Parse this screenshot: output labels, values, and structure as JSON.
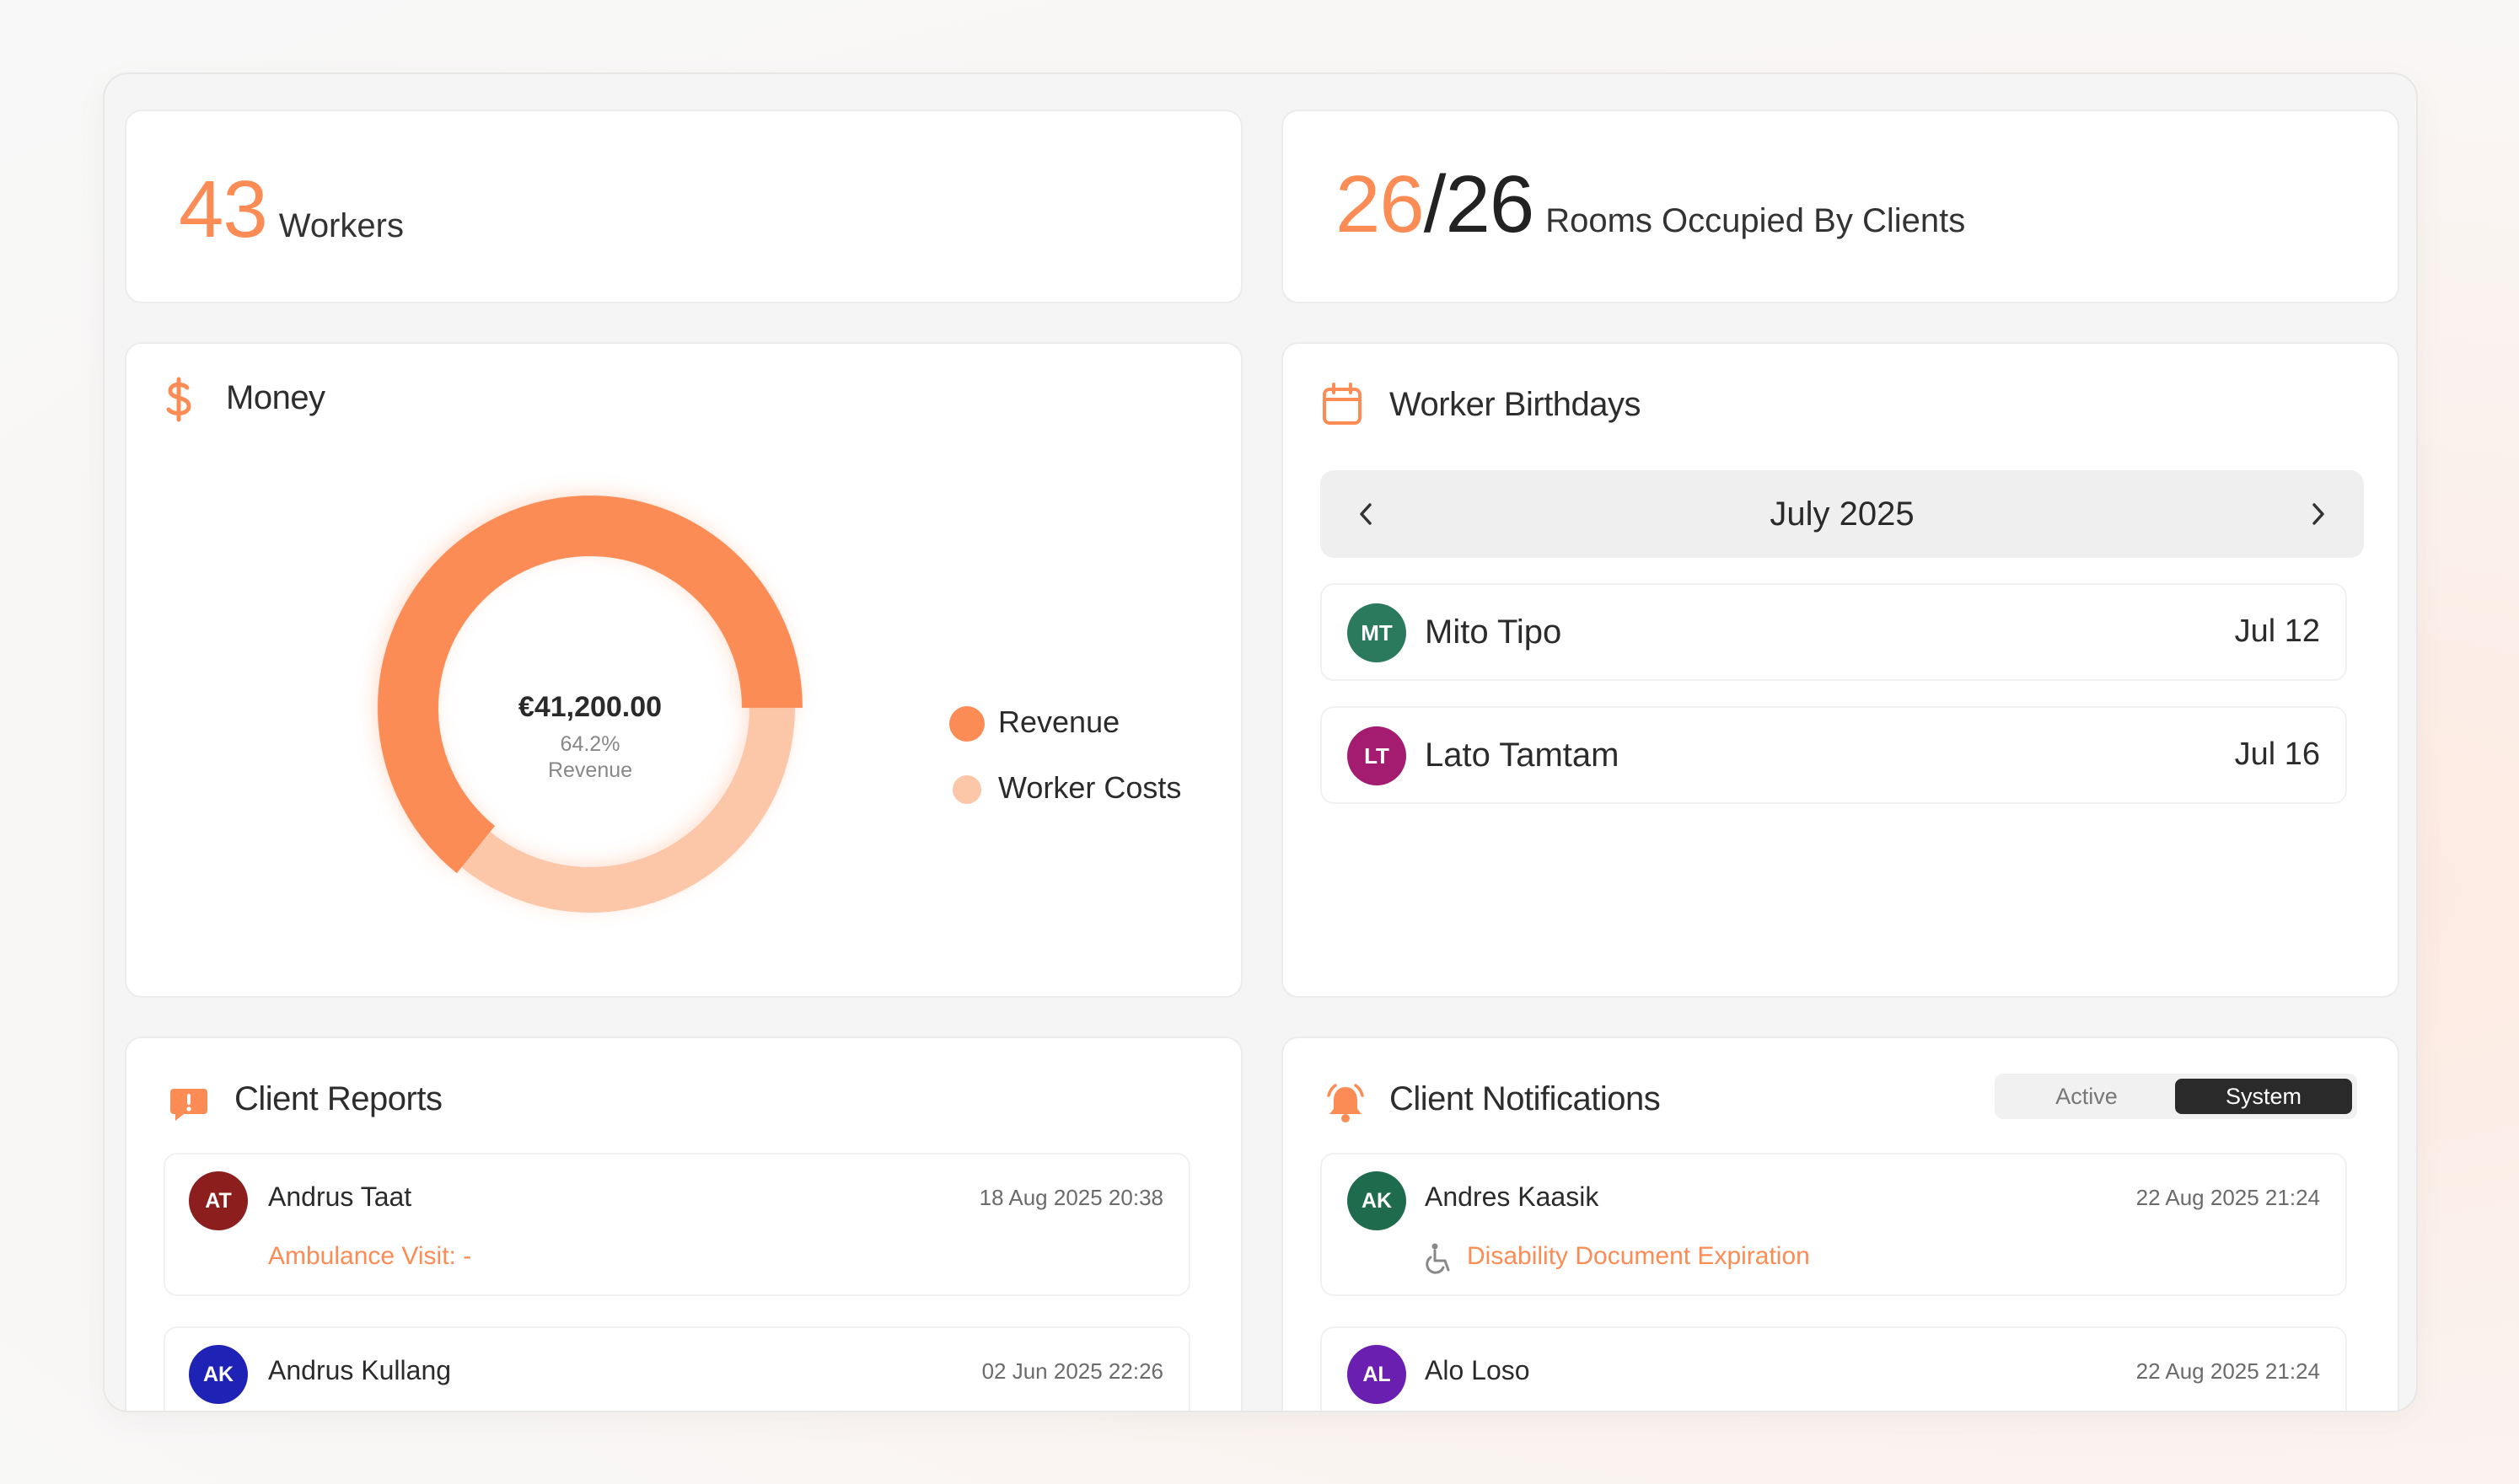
{
  "stats": {
    "workers_count": "43",
    "workers_label": "Workers",
    "rooms_occupied": "26",
    "rooms_separator": "/",
    "rooms_total": "26",
    "rooms_label": "Rooms Occupied By Clients"
  },
  "money": {
    "title": "Money",
    "center_value": "€41,200.00",
    "center_percent": "64.2%",
    "center_label": "Revenue",
    "legend": [
      {
        "label": "Revenue",
        "color": "#fb8c55"
      },
      {
        "label": "Worker Costs",
        "color": "#fcc6a8"
      }
    ],
    "chart_data": {
      "type": "pie",
      "categories": [
        "Revenue",
        "Worker Costs"
      ],
      "values": [
        64.2,
        35.8
      ],
      "colors": [
        "#fb8c55",
        "#fcc6a8"
      ]
    }
  },
  "birthdays": {
    "title": "Worker Birthdays",
    "month": "July 2025",
    "items": [
      {
        "initials": "MT",
        "name": "Mito Tipo",
        "date": "Jul 12",
        "color": "#2b7a5e"
      },
      {
        "initials": "LT",
        "name": "Lato Tamtam",
        "date": "Jul 16",
        "color": "#a31c6f"
      }
    ]
  },
  "reports": {
    "title": "Client Reports",
    "items": [
      {
        "initials": "AT",
        "name": "Andrus Taat",
        "date": "18 Aug 2025 20:38",
        "detail": "Ambulance Visit: -",
        "color": "#8c1e1e"
      },
      {
        "initials": "AK",
        "name": "Andrus Kullang",
        "date": "02 Jun 2025 22:26",
        "detail": "",
        "color": "#1f23b5"
      }
    ]
  },
  "notifications": {
    "title": "Client Notifications",
    "toggle_active": "Active",
    "toggle_system": "System",
    "items": [
      {
        "initials": "AK",
        "name": "Andres Kaasik",
        "date": "22 Aug 2025 21:24",
        "detail": "Disability Document Expiration",
        "color": "#1f6b4d"
      },
      {
        "initials": "AL",
        "name": "Alo Loso",
        "date": "22 Aug 2025 21:24",
        "detail": "",
        "color": "#6a1fb0"
      }
    ]
  }
}
